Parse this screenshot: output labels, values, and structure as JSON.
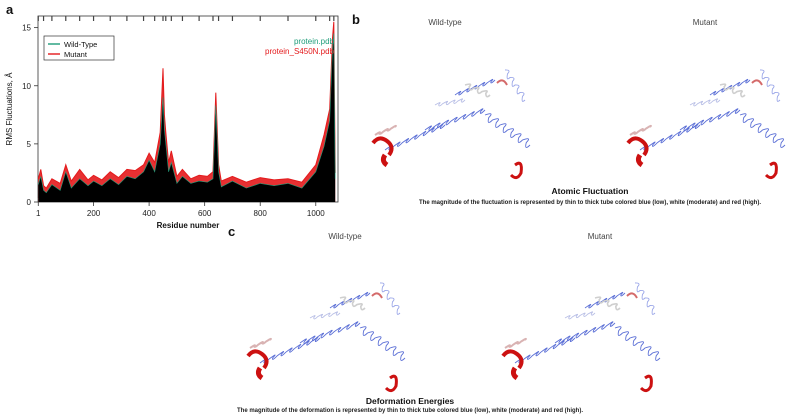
{
  "panels": {
    "a": "a",
    "b": "b",
    "c": "c"
  },
  "chart_data": {
    "type": "line",
    "title": "",
    "xlabel": "Residue number",
    "ylabel": "RMS Fluctuations, Å",
    "xlim": [
      0,
      1080
    ],
    "ylim": [
      0,
      16
    ],
    "xticks": [
      1,
      200,
      400,
      600,
      800,
      1000
    ],
    "yticks": [
      0,
      5,
      10,
      15
    ],
    "legend": {
      "position": "top-left",
      "entries": [
        {
          "name": "Wild-Type",
          "color": "#1f9d7a"
        },
        {
          "name": "Mutant",
          "color": "#e41a1c"
        }
      ]
    },
    "annotations": [
      {
        "text": "protein.pdb",
        "color": "#1f9d7a"
      },
      {
        "text": "protein_S450N.pdb",
        "color": "#e41a1c"
      }
    ],
    "x": [
      1,
      10,
      20,
      30,
      50,
      80,
      100,
      120,
      150,
      180,
      200,
      230,
      260,
      290,
      320,
      350,
      380,
      400,
      420,
      440,
      450,
      455,
      460,
      470,
      480,
      500,
      520,
      550,
      580,
      610,
      630,
      640,
      650,
      660,
      700,
      750,
      800,
      850,
      900,
      950,
      1000,
      1030,
      1050,
      1060,
      1065,
      1070
    ],
    "series": [
      {
        "name": "Wild-Type",
        "values": [
          1.5,
          2.2,
          1.0,
          0.8,
          1.5,
          1.0,
          2.6,
          1.2,
          2.0,
          1.4,
          1.8,
          1.4,
          2.0,
          1.5,
          2.2,
          2.0,
          2.6,
          3.6,
          2.6,
          5.0,
          9.0,
          6.2,
          5.0,
          2.6,
          3.4,
          1.6,
          2.2,
          1.6,
          1.8,
          1.7,
          2.0,
          8.3,
          2.6,
          1.3,
          1.8,
          1.2,
          1.6,
          1.4,
          1.6,
          1.2,
          2.6,
          4.8,
          7.0,
          13.0,
          14.5,
          2.0
        ]
      },
      {
        "name": "Mutant",
        "values": [
          2.0,
          2.8,
          1.4,
          1.2,
          2.0,
          1.6,
          3.2,
          1.8,
          2.8,
          1.9,
          2.3,
          1.9,
          2.6,
          2.1,
          2.8,
          2.7,
          3.2,
          4.2,
          3.4,
          6.0,
          11.5,
          7.5,
          6.0,
          3.4,
          4.4,
          2.2,
          2.8,
          2.0,
          2.3,
          2.2,
          2.6,
          9.4,
          3.2,
          1.8,
          2.2,
          1.7,
          2.1,
          1.9,
          2.0,
          1.7,
          3.2,
          5.8,
          8.0,
          14.0,
          15.5,
          2.5
        ]
      }
    ]
  },
  "structures": {
    "b": {
      "left_title": "Wild-type",
      "right_title": "Mutant",
      "caption_title": "Atomic Fluctuation",
      "caption_text": "The magnitude of the fluctuation is represented by thin to thick tube colored blue (low), white (moderate) and red (high)."
    },
    "c": {
      "left_title": "Wild-type",
      "right_title": "Mutant",
      "caption_title": "Deformation Energies",
      "caption_text": "The magnitude of the deformation is represented by thin to thick tube colored blue (low), white (moderate) and red (high)."
    }
  },
  "colors": {
    "wild_type": "#1f9d7a",
    "mutant": "#e41a1c",
    "fill": "#000000",
    "tube_low": "#5b6fd6",
    "tube_high": "#cc1111"
  }
}
